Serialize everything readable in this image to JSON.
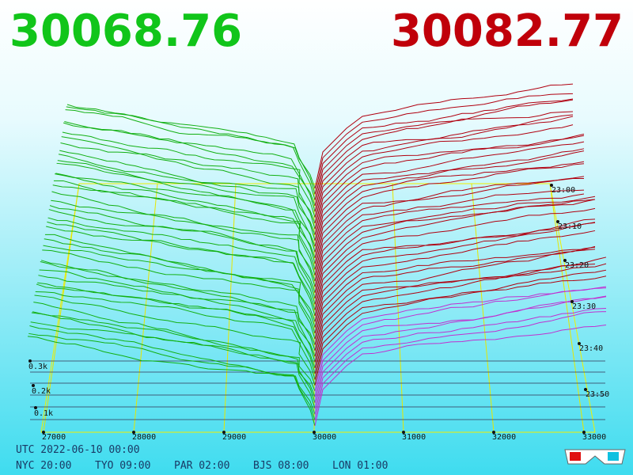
{
  "header": {
    "bid": "30068.76",
    "ask": "30082.77"
  },
  "price_axis": {
    "labels": [
      "27000",
      "28000",
      "29000",
      "30000",
      "31000",
      "32000",
      "33000"
    ]
  },
  "volume_axis": {
    "labels": [
      "0.3k",
      "0.2k",
      "0.1k"
    ]
  },
  "time_axis": {
    "labels": [
      "23:00",
      "23:10",
      "23:20",
      "23:30",
      "23:40",
      "23:50"
    ]
  },
  "footer": {
    "utc": "UTC 2022-06-10 00:00",
    "clocks": [
      "NYC 20:00",
      "TYO 09:00",
      "PAR 02:00",
      "BJS 08:00",
      "LON 01:00"
    ]
  }
}
